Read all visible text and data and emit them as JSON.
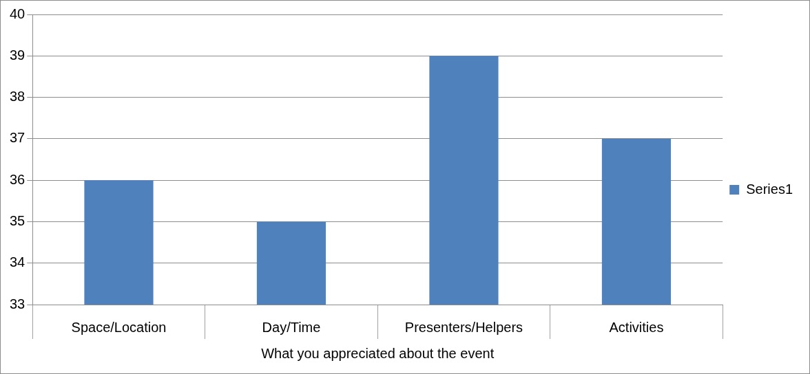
{
  "chart_data": {
    "type": "bar",
    "xlabel": "What you appreciated about the event",
    "categories": [
      "Space/Location",
      "Day/Time",
      "Presenters/Helpers",
      "Activities"
    ],
    "series": [
      {
        "name": "Series1",
        "color": "#4f81bd",
        "values": [
          36,
          35,
          39,
          37
        ]
      }
    ],
    "ylim": [
      33,
      40
    ],
    "yticks": [
      33,
      34,
      35,
      36,
      37,
      38,
      39,
      40
    ],
    "grid": "y",
    "legend": "right"
  }
}
